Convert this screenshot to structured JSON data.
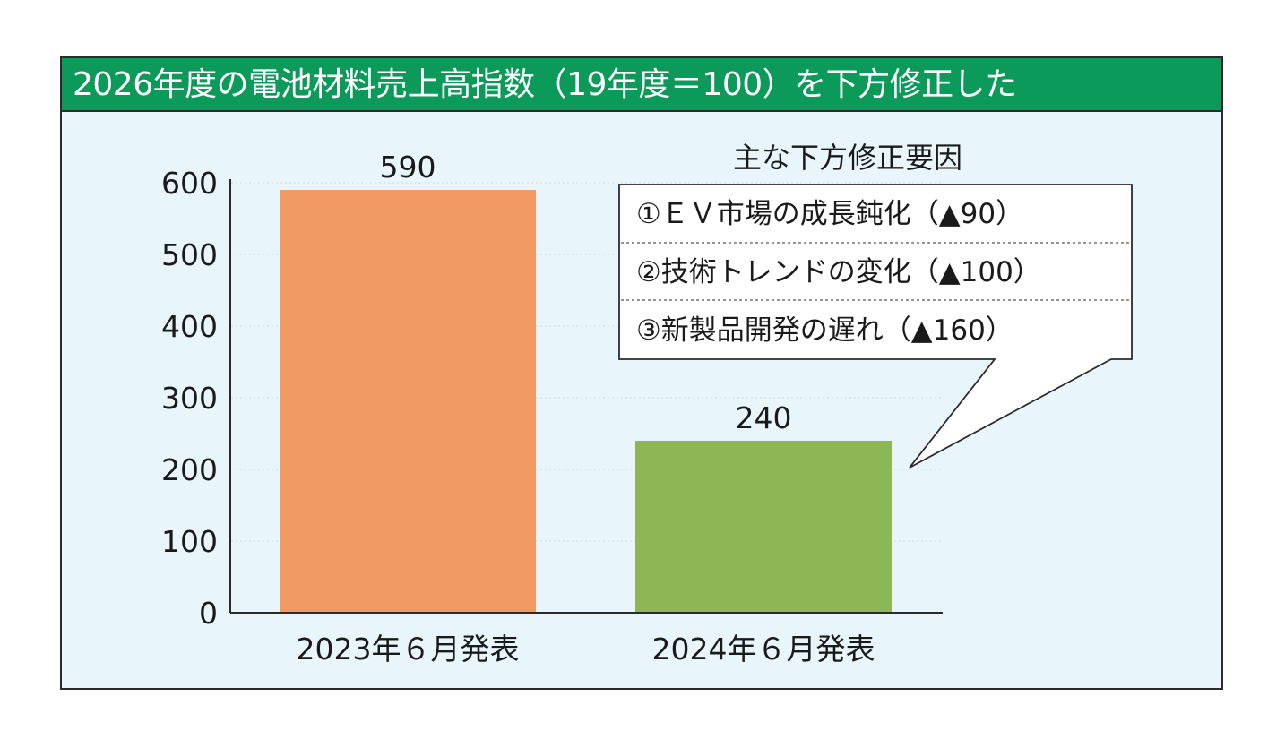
{
  "title": "2026年度の電池材料売上高指数（19年度＝100）を下方修正した",
  "callout": {
    "heading": "主な下方修正要因",
    "items": [
      "①ＥＶ市場の成長鈍化（▲90）",
      "②技術トレンドの変化（▲100）",
      "③新製品開発の遅れ（▲160）"
    ]
  },
  "colors": {
    "title_bar": "#0c9a5a",
    "background": "#e8f5fb",
    "bar_2023": "#f29a64",
    "bar_2024": "#8db654"
  },
  "chart_data": {
    "type": "bar",
    "title": "2026年度の電池材料売上高指数（19年度＝100）を下方修正した",
    "categories": [
      "2023年６月発表",
      "2024年６月発表"
    ],
    "values": [
      590,
      240
    ],
    "data_labels": [
      "590",
      "240"
    ],
    "yticks": [
      "0",
      "100",
      "200",
      "300",
      "400",
      "500",
      "600"
    ],
    "ylim": [
      0,
      600
    ],
    "xlabel": "",
    "ylabel": "",
    "grid": true,
    "legend": "none"
  }
}
